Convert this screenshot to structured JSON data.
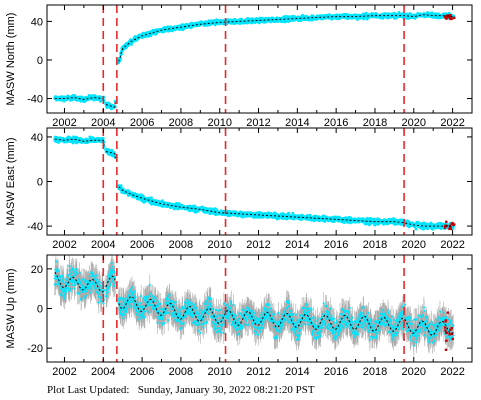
{
  "chart_data": [
    {
      "type": "scatter",
      "ylabel": "MASW North (mm)",
      "xlim": [
        2001.1,
        2023.0
      ],
      "ylim": [
        -55,
        57
      ],
      "yticks": [
        -40,
        0,
        40
      ],
      "xticks": [
        2002,
        2004,
        2006,
        2008,
        2010,
        2012,
        2014,
        2016,
        2018,
        2020,
        2022
      ],
      "event_lines": [
        2004.0,
        2004.7,
        2010.3,
        2019.5
      ],
      "series": [
        {
          "values": [
            [
              2001.5,
              -40
            ],
            [
              2002.0,
              -40
            ],
            [
              2002.5,
              -39
            ],
            [
              2003.0,
              -41
            ],
            [
              2003.5,
              -39
            ],
            [
              2004.0,
              -40
            ],
            [
              2004.1,
              -46
            ],
            [
              2004.6,
              -49
            ],
            [
              2004.75,
              -5
            ],
            [
              2005.0,
              12
            ],
            [
              2005.5,
              20
            ],
            [
              2006.0,
              25
            ],
            [
              2007.0,
              31
            ],
            [
              2008.0,
              34
            ],
            [
              2009.0,
              37
            ],
            [
              2010.0,
              39
            ],
            [
              2011.0,
              40
            ],
            [
              2012.0,
              41
            ],
            [
              2013.0,
              42
            ],
            [
              2014.0,
              43
            ],
            [
              2015.0,
              44
            ],
            [
              2016.0,
              45
            ],
            [
              2017.0,
              45
            ],
            [
              2018.0,
              46
            ],
            [
              2019.0,
              46
            ],
            [
              2019.5,
              46
            ],
            [
              2020.0,
              45
            ],
            [
              2020.5,
              47
            ],
            [
              2021.0,
              46
            ],
            [
              2021.5,
              46
            ],
            [
              2022.0,
              45
            ]
          ]
        }
      ]
    },
    {
      "type": "scatter",
      "ylabel": "MASW East (mm)",
      "xlim": [
        2001.1,
        2023.0
      ],
      "ylim": [
        -48,
        48
      ],
      "yticks": [
        -40,
        0,
        40
      ],
      "xticks": [
        2002,
        2004,
        2006,
        2008,
        2010,
        2012,
        2014,
        2016,
        2018,
        2020,
        2022
      ],
      "event_lines": [
        2004.0,
        2004.7,
        2010.3,
        2019.5
      ],
      "series": [
        {
          "values": [
            [
              2001.5,
              38
            ],
            [
              2002.0,
              37
            ],
            [
              2002.5,
              38
            ],
            [
              2003.0,
              36
            ],
            [
              2003.5,
              37
            ],
            [
              2004.0,
              37
            ],
            [
              2004.1,
              27
            ],
            [
              2004.6,
              25
            ],
            [
              2004.75,
              -4
            ],
            [
              2005.0,
              -8
            ],
            [
              2005.5,
              -12
            ],
            [
              2006.0,
              -15
            ],
            [
              2007.0,
              -20
            ],
            [
              2008.0,
              -23
            ],
            [
              2009.0,
              -25
            ],
            [
              2010.0,
              -28
            ],
            [
              2011.0,
              -29
            ],
            [
              2012.0,
              -30
            ],
            [
              2013.0,
              -31
            ],
            [
              2014.0,
              -32
            ],
            [
              2015.0,
              -33
            ],
            [
              2016.0,
              -34
            ],
            [
              2017.0,
              -35
            ],
            [
              2018.0,
              -36
            ],
            [
              2019.0,
              -36
            ],
            [
              2019.5,
              -37
            ],
            [
              2020.0,
              -39
            ],
            [
              2020.5,
              -40
            ],
            [
              2021.0,
              -40
            ],
            [
              2021.5,
              -40
            ],
            [
              2022.0,
              -40
            ]
          ]
        }
      ]
    },
    {
      "type": "scatter",
      "ylabel": "MASW Up (mm)",
      "xlim": [
        2001.1,
        2023.0
      ],
      "ylim": [
        -27,
        27
      ],
      "yticks": [
        -20,
        0,
        20
      ],
      "xticks": [
        2002,
        2004,
        2006,
        2008,
        2010,
        2012,
        2014,
        2016,
        2018,
        2020,
        2022
      ],
      "event_lines": [
        2004.0,
        2004.7,
        2010.3,
        2019.5
      ],
      "series": [
        {
          "values": [
            [
              2001.5,
              15
            ],
            [
              2002.0,
              14
            ],
            [
              2002.5,
              12
            ],
            [
              2003.0,
              13
            ],
            [
              2003.5,
              11
            ],
            [
              2004.0,
              12
            ],
            [
              2004.6,
              13
            ],
            [
              2004.75,
              5
            ],
            [
              2005.0,
              3
            ],
            [
              2006.0,
              2
            ],
            [
              2007.0,
              0
            ],
            [
              2008.0,
              -2
            ],
            [
              2009.0,
              -3
            ],
            [
              2010.0,
              -4
            ],
            [
              2011.0,
              -5
            ],
            [
              2012.0,
              -5
            ],
            [
              2013.0,
              -6
            ],
            [
              2014.0,
              -6
            ],
            [
              2015.0,
              -7
            ],
            [
              2016.0,
              -7
            ],
            [
              2017.0,
              -7
            ],
            [
              2018.0,
              -8
            ],
            [
              2019.0,
              -8
            ],
            [
              2020.0,
              -9
            ],
            [
              2020.5,
              -10
            ],
            [
              2021.0,
              -10
            ],
            [
              2021.5,
              -10
            ],
            [
              2022.0,
              -9
            ]
          ]
        }
      ]
    }
  ],
  "colors": {
    "data_points": "#00e5ff",
    "error_bars": "#aaaaaa",
    "model_line": "#000000",
    "event_line": "#e8282a",
    "outlier": "#cc0000"
  },
  "footer": {
    "label": "Plot Last Updated:",
    "value": "Sunday, January 30, 2022 08:21:20 PST"
  }
}
